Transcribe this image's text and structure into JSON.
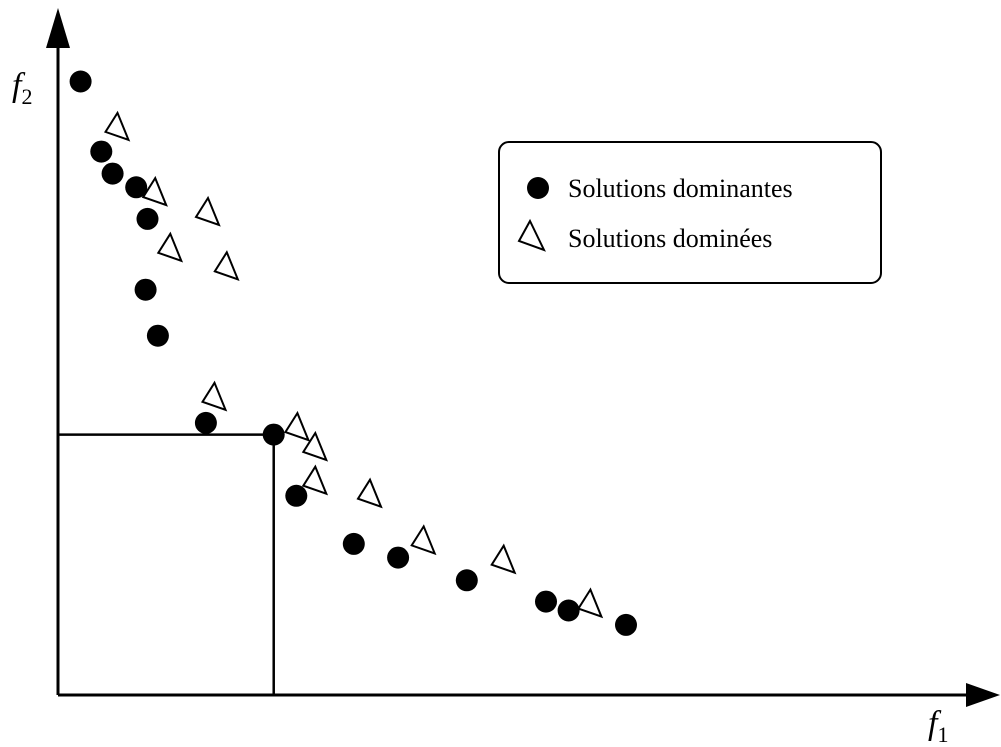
{
  "chart_data": {
    "type": "scatter",
    "x_label": {
      "base": "f",
      "sub": "1"
    },
    "y_label": {
      "base": "f",
      "sub": "2"
    },
    "grid": false,
    "legend_position": "top-right",
    "xlim": [
      0,
      100
    ],
    "ylim": [
      0,
      100
    ],
    "series": [
      {
        "name": "Solutions dominantes",
        "marker": "filled-circle",
        "color": "#000000",
        "points": [
          [
            2.4,
            89.3
          ],
          [
            4.6,
            79.1
          ],
          [
            5.8,
            75.9
          ],
          [
            8.3,
            73.9
          ],
          [
            9.5,
            69.3
          ],
          [
            9.3,
            59.0
          ],
          [
            10.6,
            52.3
          ],
          [
            15.7,
            39.6
          ],
          [
            22.9,
            37.9
          ],
          [
            25.3,
            29.0
          ],
          [
            31.4,
            22.0
          ],
          [
            36.1,
            20.0
          ],
          [
            43.4,
            16.7
          ],
          [
            51.8,
            13.6
          ],
          [
            54.2,
            12.3
          ],
          [
            60.3,
            10.2
          ]
        ]
      },
      {
        "name": "Solutions dominées",
        "marker": "open-triangle",
        "color": "#000000",
        "points": [
          [
            6.0,
            82.7
          ],
          [
            10.0,
            73.2
          ],
          [
            15.6,
            70.3
          ],
          [
            11.6,
            65.1
          ],
          [
            17.6,
            62.4
          ],
          [
            16.3,
            43.4
          ],
          [
            25.1,
            39.0
          ],
          [
            27.0,
            36.1
          ],
          [
            27.0,
            31.2
          ],
          [
            32.8,
            29.3
          ],
          [
            38.5,
            22.5
          ],
          [
            47.0,
            19.7
          ],
          [
            56.2,
            13.3
          ]
        ]
      }
    ],
    "annotations": [
      {
        "type": "dominance-box",
        "from": [
          0,
          0
        ],
        "to": [
          22.9,
          37.9
        ]
      }
    ]
  }
}
